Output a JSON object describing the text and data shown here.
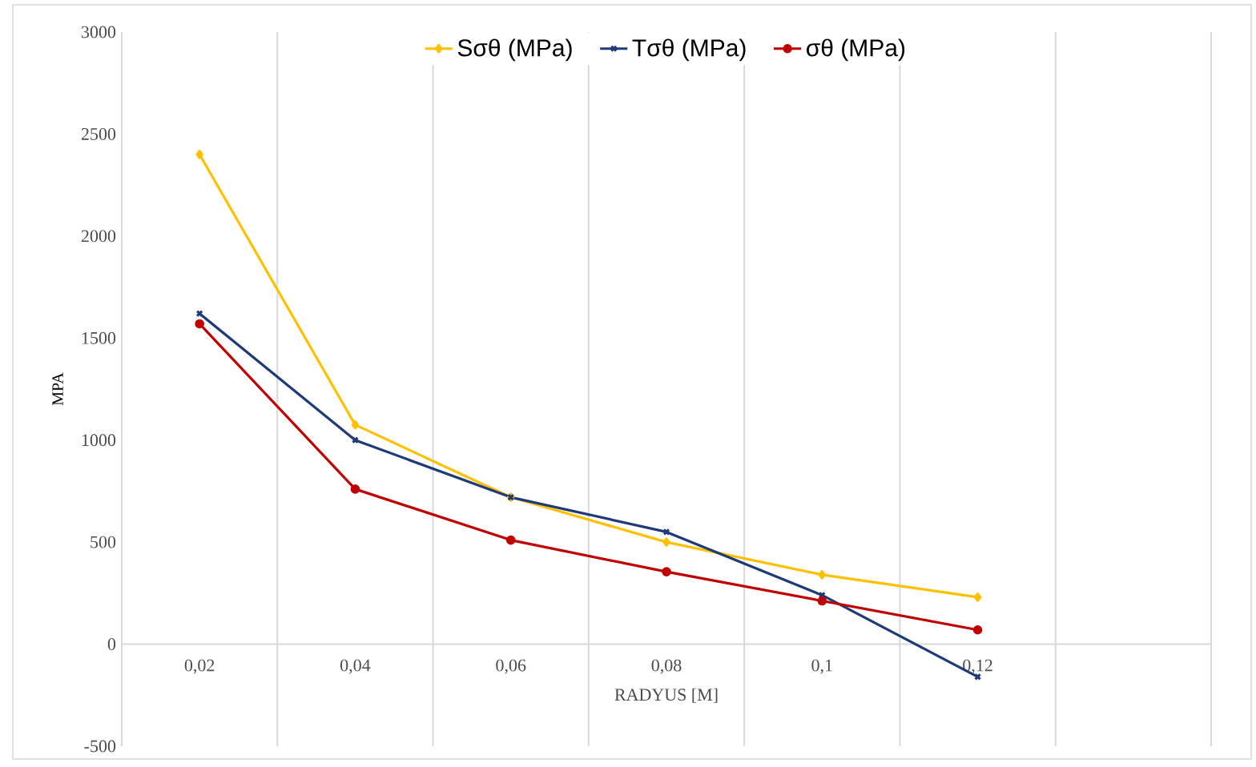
{
  "chart_data": {
    "type": "line",
    "xlabel": "RADYUS [M]",
    "ylabel": "MPA",
    "categories": [
      "0,02",
      "0,04",
      "0,06",
      "0,08",
      "0,1",
      "0,12",
      null
    ],
    "series": [
      {
        "name": "Sσθ (MPa)",
        "color": "#ffc000",
        "marker": "diamond",
        "values": [
          2400,
          1075,
          720,
          500,
          340,
          230,
          null
        ]
      },
      {
        "name": "Tσθ (MPa)",
        "color": "#1f3a78",
        "marker": "cross",
        "values": [
          1620,
          1000,
          720,
          550,
          240,
          -160,
          null
        ]
      },
      {
        "name": "σθ (MPa)",
        "color": "#c00000",
        "marker": "circle",
        "values": [
          1570,
          760,
          510,
          355,
          212,
          70,
          null
        ]
      }
    ],
    "ylim": [
      -500,
      3000
    ],
    "yticks": [
      -500,
      0,
      500,
      1000,
      1500,
      2000,
      2500,
      3000
    ],
    "grid": "x",
    "legend": "top",
    "line_style": "solid"
  }
}
